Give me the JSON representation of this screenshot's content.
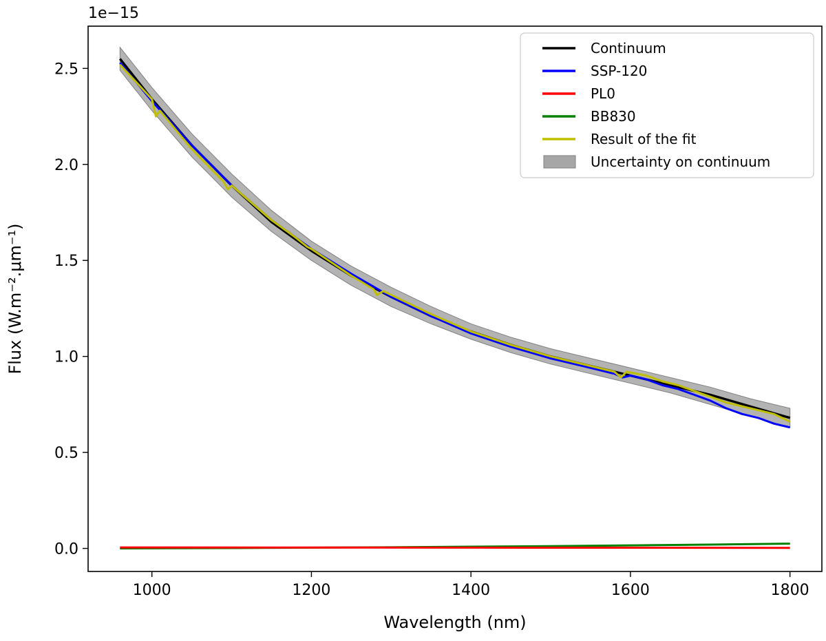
{
  "chart_data": {
    "type": "line",
    "xlabel": "Wavelength (nm)",
    "ylabel": "Flux (W.m⁻².μm⁻¹)",
    "offset_text": "1e−15",
    "xlim": [
      920,
      1840
    ],
    "ylim": [
      -0.12,
      2.72
    ],
    "x_ticks": [
      1000,
      1200,
      1400,
      1600,
      1800
    ],
    "x_tick_labels": [
      "1000",
      "1200",
      "1400",
      "1600",
      "1800"
    ],
    "y_ticks": [
      0.0,
      0.5,
      1.0,
      1.5,
      2.0,
      2.5
    ],
    "y_tick_labels": [
      "0.0",
      "0.5",
      "1.0",
      "1.5",
      "2.0",
      "2.5"
    ],
    "grid": false,
    "legend_position": "top-right",
    "series": [
      {
        "name": "Continuum",
        "color": "#000000",
        "x": [
          960,
          1000,
          1050,
          1100,
          1150,
          1200,
          1250,
          1300,
          1350,
          1400,
          1450,
          1500,
          1550,
          1600,
          1650,
          1700,
          1750,
          1800
        ],
        "y": [
          2.55,
          2.34,
          2.1,
          1.89,
          1.7,
          1.55,
          1.42,
          1.31,
          1.21,
          1.13,
          1.06,
          1.0,
          0.95,
          0.9,
          0.85,
          0.8,
          0.74,
          0.68
        ]
      },
      {
        "name": "SSP-120",
        "color": "#0000ff",
        "x": [
          960,
          1000,
          1050,
          1100,
          1150,
          1200,
          1250,
          1300,
          1350,
          1400,
          1450,
          1500,
          1520,
          1540,
          1560,
          1580,
          1590,
          1600,
          1620,
          1640,
          1660,
          1680,
          1700,
          1720,
          1740,
          1760,
          1780,
          1800
        ],
        "y": [
          2.53,
          2.33,
          2.1,
          1.89,
          1.71,
          1.56,
          1.43,
          1.31,
          1.21,
          1.12,
          1.05,
          0.99,
          0.97,
          0.95,
          0.93,
          0.91,
          0.89,
          0.9,
          0.88,
          0.85,
          0.83,
          0.8,
          0.77,
          0.73,
          0.7,
          0.68,
          0.65,
          0.63
        ]
      },
      {
        "name": "PL0",
        "color": "#ff0000",
        "x": [
          960,
          1400,
          1800
        ],
        "y": [
          0.005,
          0.004,
          0.003
        ]
      },
      {
        "name": "BB830",
        "color": "#008000",
        "x": [
          960,
          1100,
          1200,
          1300,
          1400,
          1500,
          1600,
          1700,
          1800
        ],
        "y": [
          0.0,
          0.002,
          0.004,
          0.006,
          0.009,
          0.012,
          0.016,
          0.02,
          0.025
        ]
      },
      {
        "name": "Result of the fit",
        "color": "#bfbf00",
        "x": [
          960,
          980,
          1000,
          1005,
          1010,
          1020,
          1050,
          1090,
          1095,
          1100,
          1150,
          1180,
          1195,
          1200,
          1250,
          1278,
          1282,
          1290,
          1350,
          1400,
          1450,
          1500,
          1540,
          1560,
          1580,
          1588,
          1595,
          1620,
          1640,
          1660,
          1680,
          1700,
          1720,
          1740,
          1760,
          1780,
          1800
        ],
        "y": [
          2.52,
          2.43,
          2.34,
          2.25,
          2.28,
          2.23,
          2.08,
          1.91,
          1.87,
          1.89,
          1.71,
          1.62,
          1.57,
          1.56,
          1.42,
          1.35,
          1.32,
          1.34,
          1.22,
          1.13,
          1.06,
          1.0,
          0.96,
          0.94,
          0.92,
          0.89,
          0.92,
          0.9,
          0.87,
          0.85,
          0.82,
          0.79,
          0.76,
          0.74,
          0.72,
          0.7,
          0.66
        ]
      }
    ],
    "band": {
      "name": "Uncertainty on continuum",
      "color": "#a6a6a6",
      "x": [
        960,
        1000,
        1050,
        1100,
        1150,
        1200,
        1250,
        1300,
        1350,
        1400,
        1450,
        1500,
        1550,
        1600,
        1650,
        1700,
        1750,
        1800
      ],
      "lower": [
        2.49,
        2.28,
        2.04,
        1.83,
        1.65,
        1.5,
        1.37,
        1.26,
        1.17,
        1.09,
        1.02,
        0.96,
        0.91,
        0.86,
        0.81,
        0.75,
        0.69,
        0.63
      ],
      "upper": [
        2.61,
        2.4,
        2.16,
        1.95,
        1.76,
        1.6,
        1.47,
        1.36,
        1.26,
        1.17,
        1.1,
        1.04,
        0.99,
        0.94,
        0.89,
        0.84,
        0.78,
        0.73
      ]
    }
  }
}
